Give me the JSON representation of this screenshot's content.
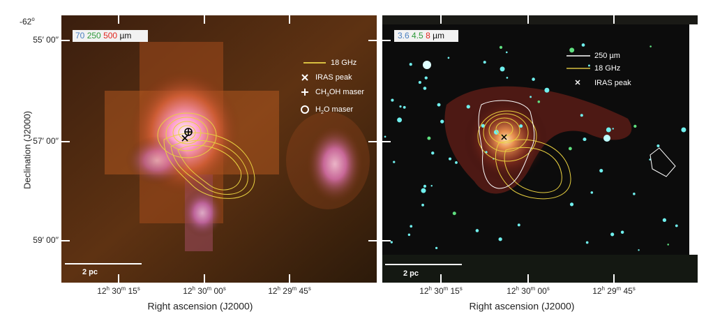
{
  "y_axis": {
    "label": "Declination (J2000)",
    "degree": [
      "-62",
      "o"
    ],
    "ticks": [
      [
        "55′ 00",
        "′′"
      ],
      [
        "57′ 00",
        "′′"
      ],
      [
        "59′ 00",
        "′′"
      ]
    ]
  },
  "panels": [
    {
      "bands": [
        {
          "text": "70",
          "color": "#4a7fc1"
        },
        {
          "text": "250",
          "color": "#2e9a3a"
        },
        {
          "text": "500",
          "color": "#e0261e"
        }
      ],
      "unit": "µm",
      "legend": [
        [
          "18 GHz"
        ],
        [
          "IRAS peak"
        ],
        [
          "CH",
          "3",
          "OH maser"
        ],
        [
          "H",
          "2",
          "O maser"
        ]
      ],
      "scale_bar": "2 pc",
      "xticks": [
        [
          "12",
          "h",
          " 30",
          "m",
          " 15",
          "s"
        ],
        [
          "12",
          "h",
          " 30",
          "m",
          " 00",
          "s"
        ],
        [
          "12",
          "h",
          " 29",
          "m",
          " 45",
          "s"
        ]
      ],
      "x_label": "Right ascension (J2000)"
    },
    {
      "bands": [
        {
          "text": "3.6",
          "color": "#4a7fc1"
        },
        {
          "text": "4.5",
          "color": "#2e9a3a"
        },
        {
          "text": "8",
          "color": "#e0261e"
        }
      ],
      "unit": "µm",
      "legend": [
        [
          "250 µm"
        ],
        [
          "18 GHz"
        ],
        [
          "IRAS peak"
        ]
      ],
      "scale_bar": "2 pc",
      "xticks": [
        [
          "12",
          "h",
          " 30",
          "m",
          " 15",
          "s"
        ],
        [
          "12",
          "h",
          " 30",
          "m",
          " 00",
          "s"
        ],
        [
          "12",
          "h",
          " 29",
          "m",
          " 45",
          "s"
        ]
      ],
      "x_label": "Right ascension (J2000)"
    }
  ]
}
